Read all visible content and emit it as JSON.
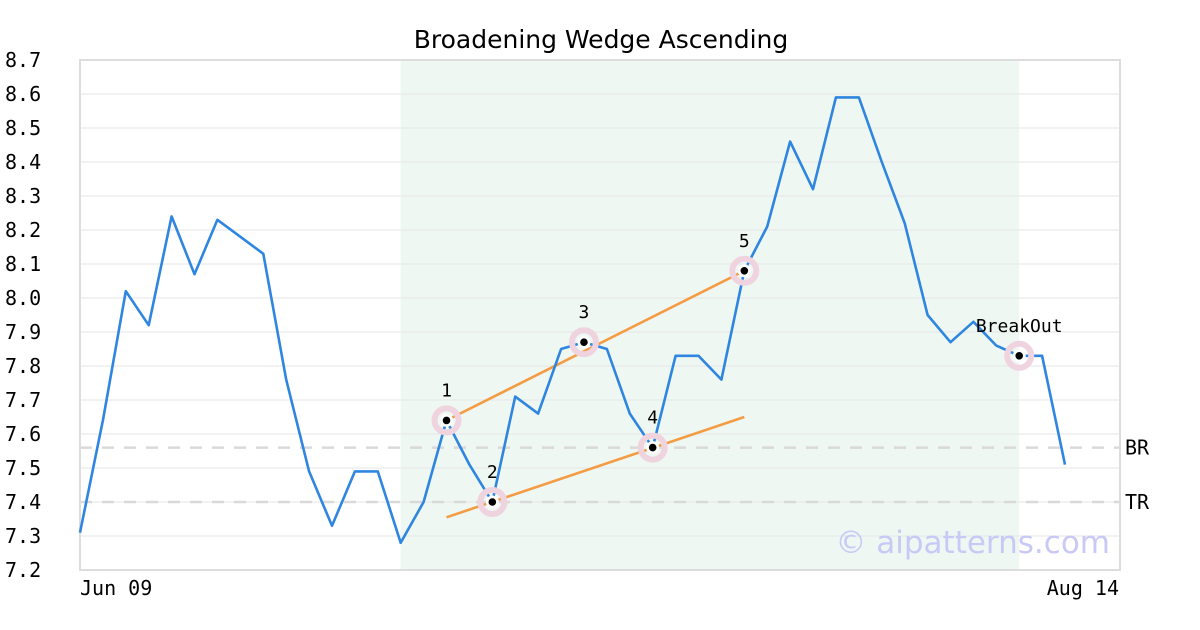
{
  "chart_data": {
    "type": "line",
    "title": "Broadening Wedge Ascending",
    "xlabel": "",
    "ylabel": "",
    "ylim": [
      7.2,
      8.7
    ],
    "yticks": [
      "7.2",
      "7.3",
      "7.4",
      "7.5",
      "7.6",
      "7.7",
      "7.8",
      "7.9",
      "8.0",
      "8.1",
      "8.2",
      "8.3",
      "8.4",
      "8.5",
      "8.6",
      "8.7"
    ],
    "x_range_labels": {
      "start": "Jun 09",
      "end": "Aug 14"
    },
    "grid": true,
    "n_points": 44,
    "series": [
      {
        "color": "#2f86e0",
        "values": [
          7.31,
          7.64,
          8.02,
          7.92,
          8.24,
          8.07,
          8.23,
          8.18,
          8.13,
          7.76,
          7.49,
          7.33,
          7.49,
          7.49,
          7.28,
          7.4,
          7.64,
          7.51,
          7.4,
          7.71,
          7.66,
          7.85,
          7.87,
          7.85,
          7.66,
          7.56,
          7.83,
          7.83,
          7.76,
          8.08,
          8.21,
          8.46,
          8.32,
          8.59,
          8.59,
          8.4,
          8.22,
          7.95,
          7.87,
          7.93,
          7.86,
          7.83,
          7.83,
          7.51
        ]
      }
    ],
    "pattern_zone": {
      "start_index": 14,
      "end_index": 41,
      "color": "#eff7f3"
    },
    "pattern_points": [
      {
        "label": "1",
        "index": 16,
        "value": 7.64,
        "label_pos": "above"
      },
      {
        "label": "2",
        "index": 18,
        "value": 7.4,
        "label_pos": "above"
      },
      {
        "label": "3",
        "index": 22,
        "value": 7.87,
        "label_pos": "above"
      },
      {
        "label": "4",
        "index": 25,
        "value": 7.56,
        "label_pos": "above"
      },
      {
        "label": "5",
        "index": 29,
        "value": 8.08,
        "label_pos": "above"
      },
      {
        "label": "BreakOut",
        "index": 41,
        "value": 7.83,
        "label_pos": "above"
      }
    ],
    "trendlines": [
      {
        "name": "upper",
        "color": "#f39c44",
        "from": {
          "index": 16,
          "value": 7.64
        },
        "to": {
          "index": 29,
          "value": 8.08
        }
      },
      {
        "name": "lower",
        "color": "#f39c44",
        "from": {
          "index": 16,
          "value": 7.355
        },
        "to": {
          "index": 29,
          "value": 7.65
        }
      }
    ],
    "levels": [
      {
        "label": "BR",
        "value": 7.56
      },
      {
        "label": "TR",
        "value": 7.4
      }
    ],
    "watermark": "© aipatterns.com"
  }
}
